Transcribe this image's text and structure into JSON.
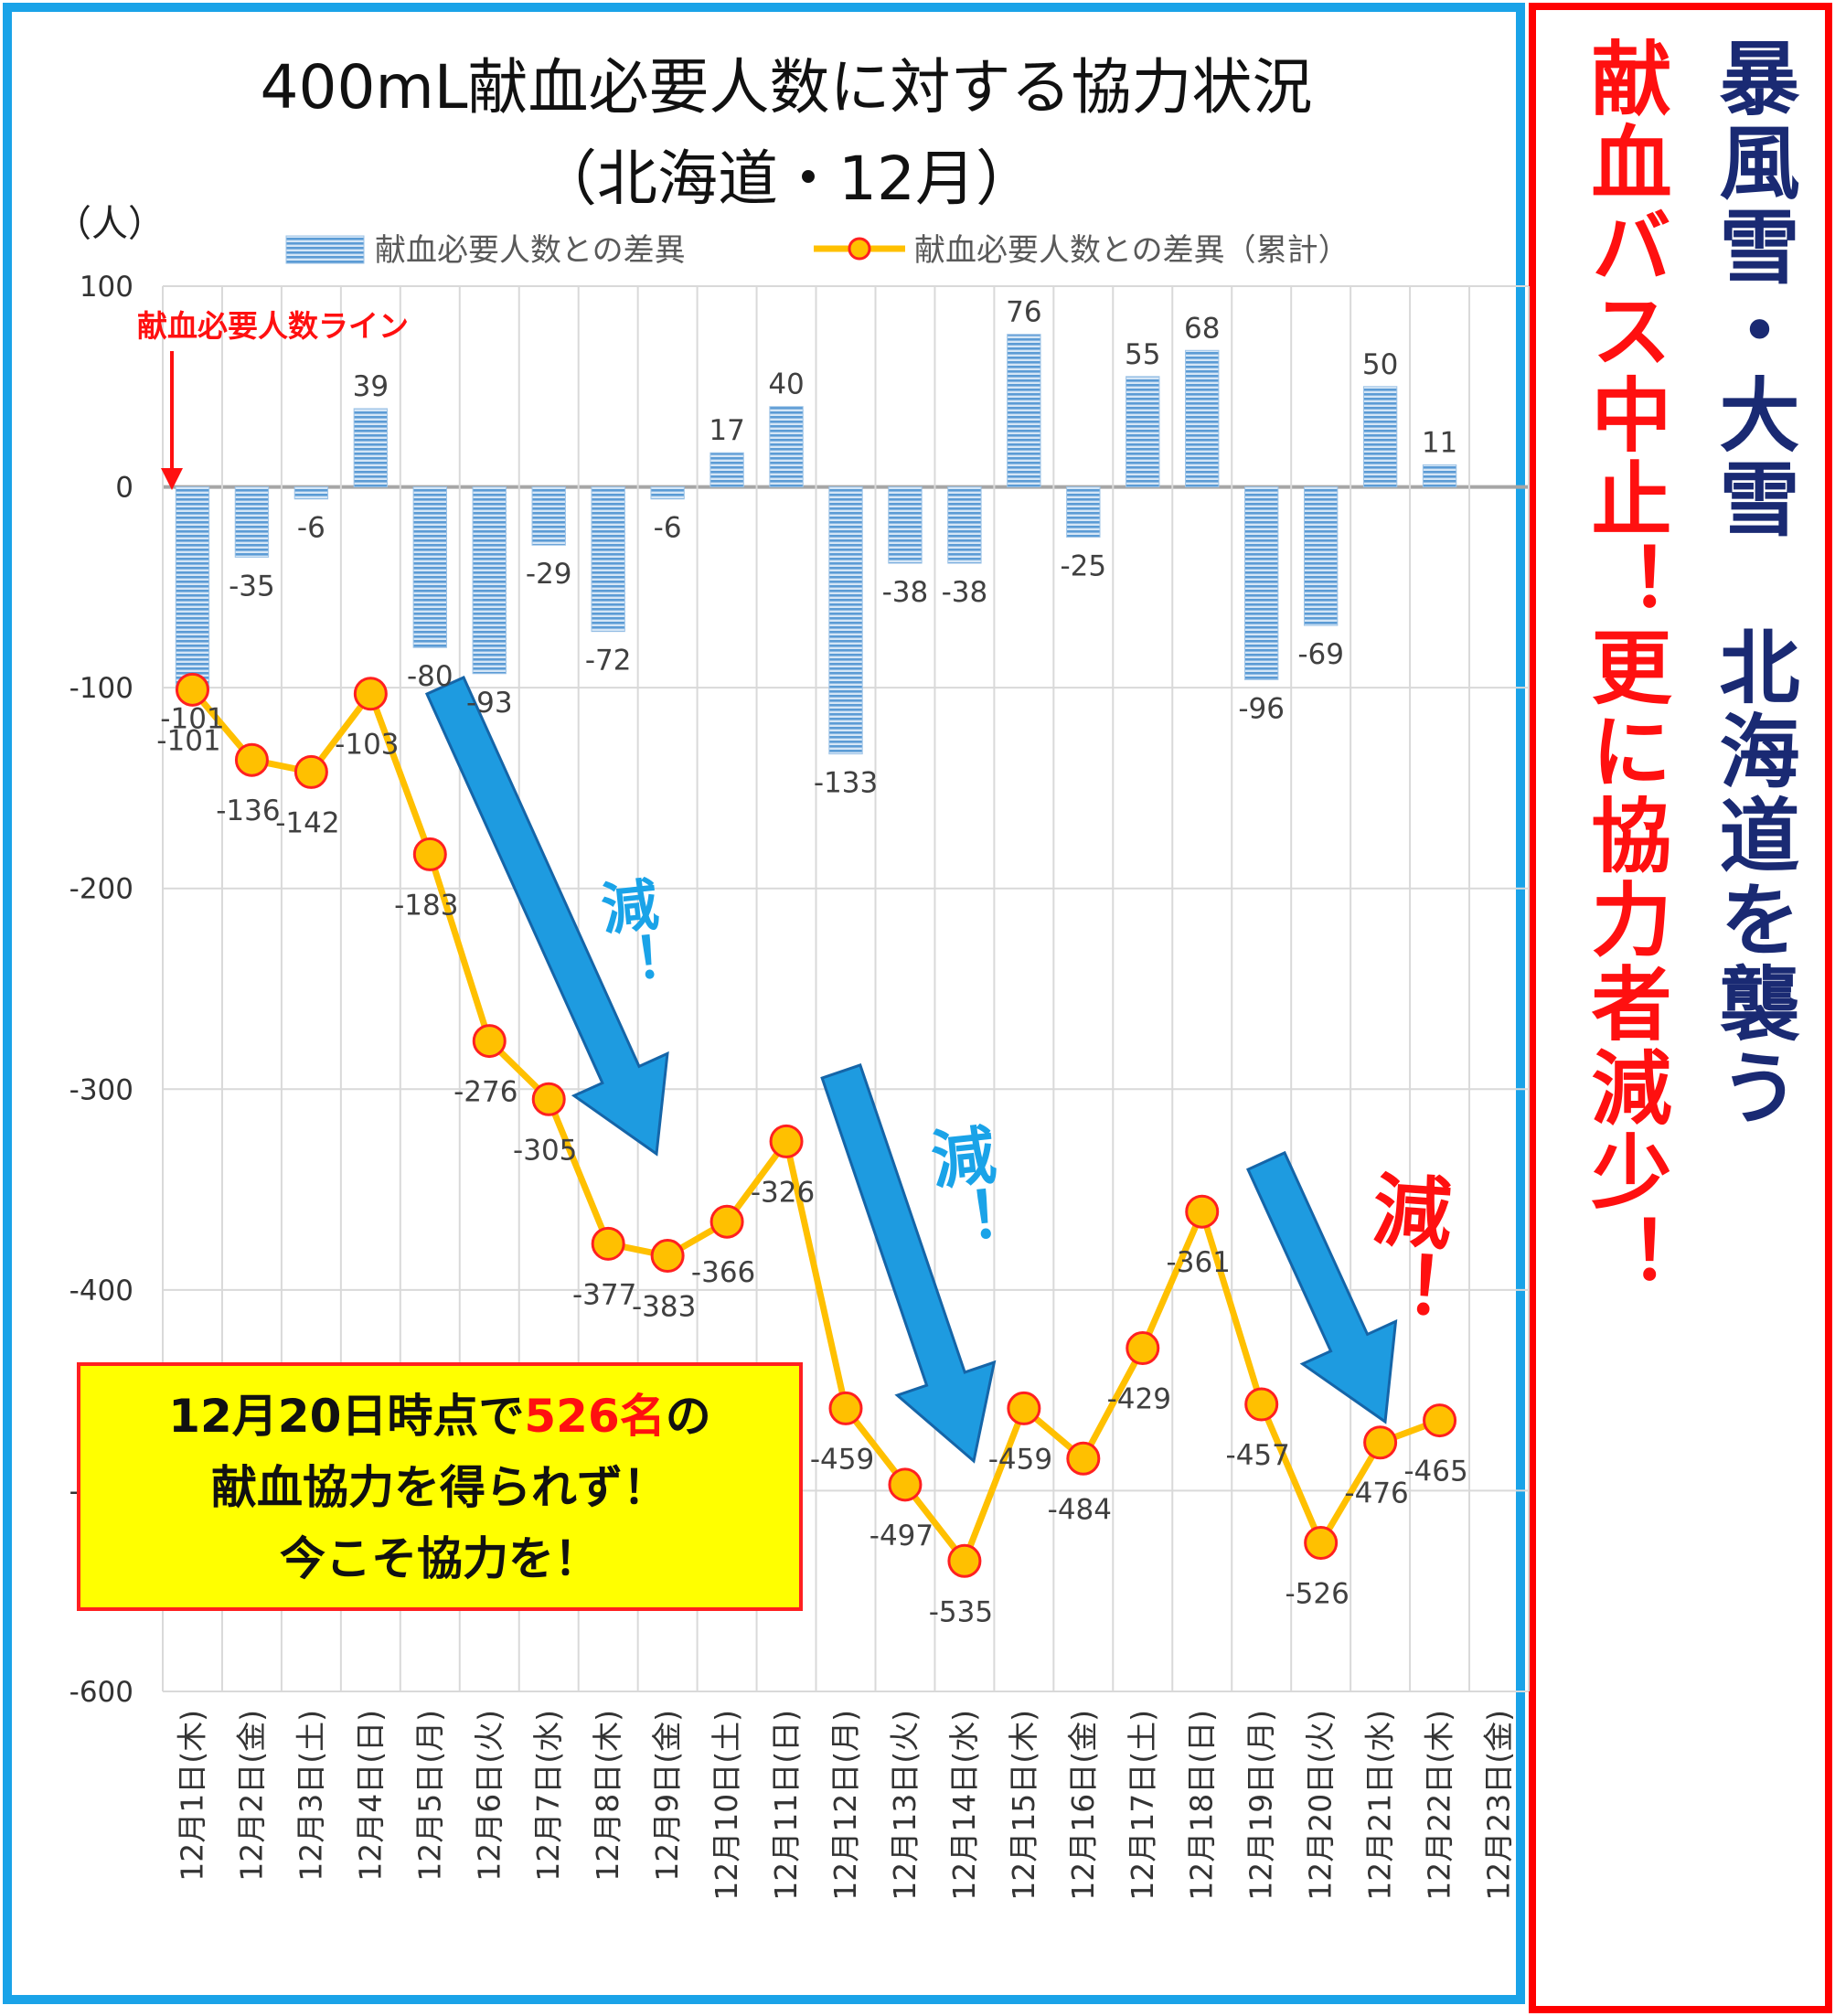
{
  "chart_data": {
    "type": "bar+line",
    "title_line1": "400mL献血必要人数に対する協力状況",
    "title_line2": "（北海道・12月）",
    "ylabel": "（人）",
    "ylim": [
      -600,
      100
    ],
    "yticks": [
      "100",
      "0",
      "-100",
      "-200",
      "-300",
      "-400",
      "-500",
      "-600"
    ],
    "categories": [
      "12月1日(木)",
      "12月2日(金)",
      "12月3日(土)",
      "12月4日(日)",
      "12月5日(月)",
      "12月6日(火)",
      "12月7日(水)",
      "12月8日(木)",
      "12月9日(金)",
      "12月10日(土)",
      "12月11日(日)",
      "12月12日(月)",
      "12月13日(火)",
      "12月14日(水)",
      "12月15日(木)",
      "12月16日(金)",
      "12月17日(土)",
      "12月18日(日)",
      "12月19日(月)",
      "12月20日(火)",
      "12月21日(水)",
      "12月22日(木)",
      "12月23日(金)"
    ],
    "series": [
      {
        "name": "献血必要人数との差異",
        "type": "bar",
        "color": "#5b9bd5",
        "values": [
          -101,
          -35,
          -6,
          39,
          -80,
          -93,
          -29,
          -72,
          -6,
          17,
          40,
          -133,
          -38,
          -38,
          76,
          -25,
          55,
          68,
          -96,
          -69,
          50,
          11,
          null
        ],
        "labels": [
          "-101",
          "-35",
          "-6",
          "39",
          "-80",
          "-93",
          "-29",
          "-72",
          "-6",
          "17",
          "40",
          "-133",
          "-38",
          "-38",
          "76",
          "-25",
          "55",
          "68",
          "-96",
          "-69",
          "50",
          "11",
          ""
        ]
      },
      {
        "name": "献血必要人数との差異（累計）",
        "type": "line",
        "color": "#ffc000",
        "values": [
          -101,
          -136,
          -142,
          -103,
          -183,
          -276,
          -305,
          -377,
          -383,
          -366,
          -326,
          -459,
          -497,
          -535,
          -459,
          -484,
          -429,
          -361,
          -457,
          -526,
          -476,
          -465,
          null
        ],
        "labels": [
          "-101",
          "-136",
          "-142",
          "-103",
          "-183",
          "-276",
          "-305",
          "-377",
          "-383",
          "-366",
          "-326",
          "-459",
          "-497",
          "-535",
          "-459",
          "-484",
          "-429",
          "-361",
          "-457",
          "-526",
          "-476",
          "-465",
          ""
        ]
      }
    ],
    "grid": true,
    "legend": "top",
    "annotations": {
      "baseline_label": "献血必要人数ライン",
      "decrease_mark": "減！",
      "decrease_mark_colors": [
        "#1aa3e8",
        "#1aa3e8",
        "#ff1010"
      ]
    }
  },
  "callout": {
    "line1_pre": "12月20日時点で",
    "line1_hl": "526名",
    "line1_post": "の",
    "line2": "献血協力を得られず！",
    "line3": "今こそ協力を！"
  },
  "side_banner": {
    "column1": "暴風雪・大雪　北海道を襲う",
    "column2": "献血バス中止！更に協力者減少！"
  },
  "colors": {
    "frame_blue": "#1aa3e8",
    "frame_red": "#ff0000",
    "arrow_blue": "#1e9be0",
    "callout_bg": "#ffff00"
  }
}
